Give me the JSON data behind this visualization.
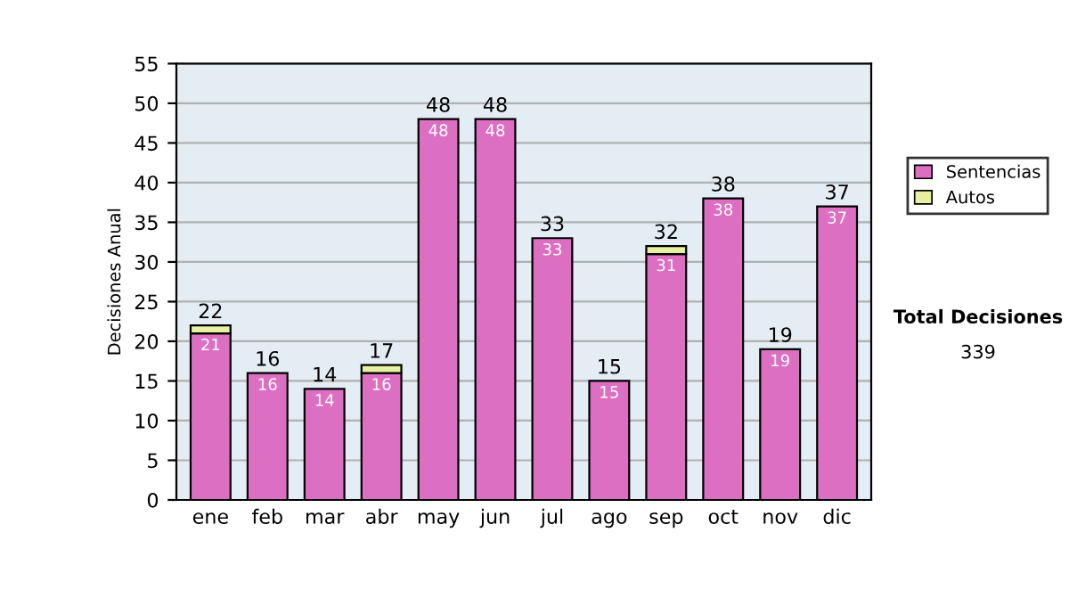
{
  "chart_data": {
    "type": "bar",
    "stacked": true,
    "ylabel": "Decisiones Anual",
    "categories": [
      "ene",
      "feb",
      "mar",
      "abr",
      "may",
      "jun",
      "jul",
      "ago",
      "sep",
      "oct",
      "nov",
      "dic"
    ],
    "series": [
      {
        "name": "Sentencias",
        "color": "#dd6fc3",
        "values": [
          21,
          16,
          14,
          16,
          48,
          48,
          33,
          15,
          31,
          38,
          19,
          37
        ],
        "value_labels": [
          "21",
          "16",
          "14",
          "16",
          "48",
          "48",
          "33",
          "15",
          "31",
          "38",
          "19",
          "37"
        ]
      },
      {
        "name": "Autos",
        "color": "#e6f0a0",
        "values": [
          1,
          0,
          0,
          1,
          0,
          0,
          0,
          0,
          1,
          0,
          0,
          0
        ]
      }
    ],
    "totals": [
      "22",
      "16",
      "14",
      "17",
      "48",
      "48",
      "33",
      "15",
      "32",
      "38",
      "19",
      "37"
    ],
    "ylim": [
      0,
      55
    ],
    "yticks": [
      0,
      5,
      10,
      15,
      20,
      25,
      30,
      35,
      40,
      45,
      50,
      55
    ],
    "grid": "y",
    "legend": "right",
    "annotations": [
      "Total Decisiones",
      "339"
    ]
  }
}
